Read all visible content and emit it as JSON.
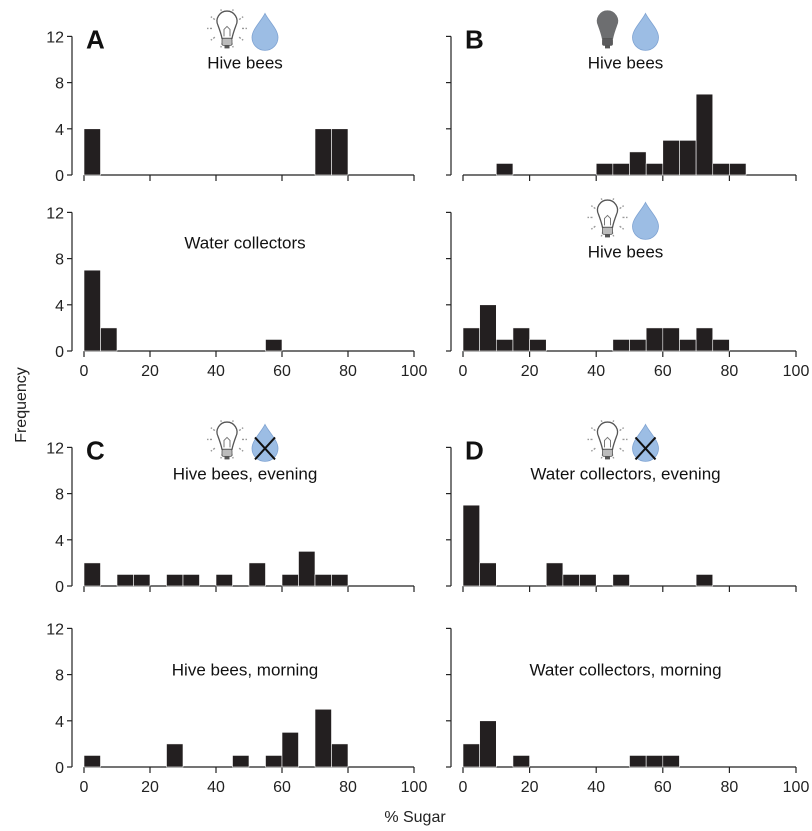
{
  "ylabel": "Frequency",
  "xlabel": "% Sugar",
  "colors": {
    "bar": "#231f20",
    "axis": "#222222",
    "drop": "#9cbde4",
    "bulb_dark": "#6d6e70"
  },
  "chart_data": [
    {
      "type": "bar",
      "panel": "A",
      "letter": "A",
      "title": "Hive bees",
      "icons": [
        "light-bulb-on-icon",
        "water-drop-icon"
      ],
      "bin_width": 5,
      "xlim": [
        0,
        100
      ],
      "ylim": [
        0,
        12
      ],
      "yticks": [
        0,
        4,
        8,
        12
      ],
      "xticks": [],
      "bins": [
        {
          "x": 0,
          "count": 4
        },
        {
          "x": 70,
          "count": 4
        },
        {
          "x": 75,
          "count": 4
        }
      ]
    },
    {
      "type": "bar",
      "panel": "A2",
      "letter": "",
      "title": "Water collectors",
      "icons": [],
      "bin_width": 5,
      "xlim": [
        0,
        100
      ],
      "ylim": [
        0,
        12
      ],
      "yticks": [
        0,
        4,
        8,
        12
      ],
      "xticks": [
        0,
        20,
        40,
        60,
        80,
        100
      ],
      "bins": [
        {
          "x": 0,
          "count": 7
        },
        {
          "x": 5,
          "count": 2
        },
        {
          "x": 55,
          "count": 1
        }
      ]
    },
    {
      "type": "bar",
      "panel": "B",
      "letter": "B",
      "title": "Hive bees",
      "icons": [
        "light-bulb-off-icon",
        "water-drop-icon"
      ],
      "bin_width": 5,
      "xlim": [
        0,
        100
      ],
      "ylim": [
        0,
        12
      ],
      "yticks": [],
      "xticks": [],
      "bins": [
        {
          "x": 10,
          "count": 1
        },
        {
          "x": 40,
          "count": 1
        },
        {
          "x": 45,
          "count": 1
        },
        {
          "x": 50,
          "count": 2
        },
        {
          "x": 55,
          "count": 1
        },
        {
          "x": 60,
          "count": 3
        },
        {
          "x": 65,
          "count": 3
        },
        {
          "x": 70,
          "count": 7
        },
        {
          "x": 75,
          "count": 1
        },
        {
          "x": 80,
          "count": 1
        }
      ]
    },
    {
      "type": "bar",
      "panel": "B2",
      "letter": "",
      "title": "Hive bees",
      "icons": [
        "light-bulb-on-icon",
        "water-drop-icon"
      ],
      "bin_width": 5,
      "xlim": [
        0,
        100
      ],
      "ylim": [
        0,
        12
      ],
      "yticks": [],
      "xticks": [
        0,
        20,
        40,
        60,
        80,
        100
      ],
      "bins": [
        {
          "x": 0,
          "count": 2
        },
        {
          "x": 5,
          "count": 4
        },
        {
          "x": 10,
          "count": 1
        },
        {
          "x": 15,
          "count": 2
        },
        {
          "x": 20,
          "count": 1
        },
        {
          "x": 45,
          "count": 1
        },
        {
          "x": 50,
          "count": 1
        },
        {
          "x": 55,
          "count": 2
        },
        {
          "x": 60,
          "count": 2
        },
        {
          "x": 65,
          "count": 1
        },
        {
          "x": 70,
          "count": 2
        },
        {
          "x": 75,
          "count": 1
        }
      ]
    },
    {
      "type": "bar",
      "panel": "C",
      "letter": "C",
      "title": "Hive bees, evening",
      "icons": [
        "light-bulb-on-icon",
        "water-drop-crossed-icon"
      ],
      "bin_width": 5,
      "xlim": [
        0,
        100
      ],
      "ylim": [
        0,
        12
      ],
      "yticks": [
        0,
        4,
        8,
        12
      ],
      "xticks": [],
      "bins": [
        {
          "x": 0,
          "count": 2
        },
        {
          "x": 10,
          "count": 1
        },
        {
          "x": 15,
          "count": 1
        },
        {
          "x": 25,
          "count": 1
        },
        {
          "x": 30,
          "count": 1
        },
        {
          "x": 40,
          "count": 1
        },
        {
          "x": 50,
          "count": 2
        },
        {
          "x": 60,
          "count": 1
        },
        {
          "x": 65,
          "count": 3
        },
        {
          "x": 70,
          "count": 1
        },
        {
          "x": 75,
          "count": 1
        }
      ]
    },
    {
      "type": "bar",
      "panel": "C2",
      "letter": "",
      "title": "Hive bees, morning",
      "icons": [],
      "bin_width": 5,
      "xlim": [
        0,
        100
      ],
      "ylim": [
        0,
        12
      ],
      "yticks": [
        0,
        4,
        8,
        12
      ],
      "xticks": [
        0,
        20,
        40,
        60,
        80,
        100
      ],
      "bins": [
        {
          "x": 0,
          "count": 1
        },
        {
          "x": 25,
          "count": 2
        },
        {
          "x": 45,
          "count": 1
        },
        {
          "x": 55,
          "count": 1
        },
        {
          "x": 60,
          "count": 3
        },
        {
          "x": 70,
          "count": 5
        },
        {
          "x": 75,
          "count": 2
        }
      ]
    },
    {
      "type": "bar",
      "panel": "D",
      "letter": "D",
      "title": "Water collectors, evening",
      "icons": [
        "light-bulb-on-icon",
        "water-drop-crossed-icon"
      ],
      "bin_width": 5,
      "xlim": [
        0,
        100
      ],
      "ylim": [
        0,
        12
      ],
      "yticks": [],
      "xticks": [],
      "bins": [
        {
          "x": 0,
          "count": 7
        },
        {
          "x": 5,
          "count": 2
        },
        {
          "x": 25,
          "count": 2
        },
        {
          "x": 30,
          "count": 1
        },
        {
          "x": 35,
          "count": 1
        },
        {
          "x": 45,
          "count": 1
        },
        {
          "x": 70,
          "count": 1
        }
      ]
    },
    {
      "type": "bar",
      "panel": "D2",
      "letter": "",
      "title": "Water collectors, morning",
      "icons": [],
      "bin_width": 5,
      "xlim": [
        0,
        100
      ],
      "ylim": [
        0,
        12
      ],
      "yticks": [],
      "xticks": [
        0,
        20,
        40,
        60,
        80,
        100
      ],
      "bins": [
        {
          "x": 0,
          "count": 2
        },
        {
          "x": 5,
          "count": 4
        },
        {
          "x": 15,
          "count": 1
        },
        {
          "x": 50,
          "count": 1
        },
        {
          "x": 55,
          "count": 1
        },
        {
          "x": 60,
          "count": 1
        }
      ]
    }
  ]
}
